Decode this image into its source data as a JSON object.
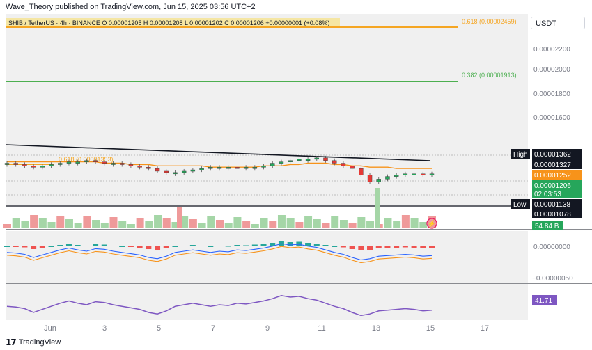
{
  "header": {
    "published_by": "Wave_Theory published on TradingView.com, Jun 15, 2025 03:56 UTC+2",
    "symbol_line": "SHIB / TetherUS · 4h · BINANCE",
    "o": "O",
    "o_val": "0.00001205",
    "h": "H",
    "h_val": "0.00001208",
    "l": "L",
    "l_val": "0.00001202",
    "c": "C",
    "c_val": "0.00001206",
    "change": "+0.00000001 (+0.08%)"
  },
  "currency": "USDT",
  "footer": {
    "brand": "TradingView",
    "logo": "tv-logo-icon"
  },
  "chart_data": {
    "type": "line",
    "price_scale": {
      "ticks": [
        "0.00002200",
        "0.00002000",
        "0.00001800",
        "0.00001600"
      ],
      "min": 1e-05,
      "max": 2.6e-05
    },
    "time_axis": [
      "Jun",
      "3",
      "5",
      "7",
      "9",
      "11",
      "13",
      "15",
      "17"
    ],
    "fib_levels": [
      {
        "label": "0.618 (0.00002459)",
        "value": 2.459e-05,
        "color": "#f5a623"
      },
      {
        "label": "0.382 (0.00001913)",
        "value": 1.913e-05,
        "color": "#4caf50"
      },
      {
        "label": "0.618 (0.00001353)",
        "value": 1.353e-05,
        "color": "#f5a623"
      }
    ],
    "price_tags": [
      {
        "label": "High",
        "value": "0.00001362",
        "bg": "#131722"
      },
      {
        "label": "",
        "value": "0.00001327",
        "bg": "#131722"
      },
      {
        "label": "",
        "value": "0.00001252",
        "bg": "#f7931a"
      },
      {
        "label": "",
        "value": "0.00001206",
        "bg": "#26a65b",
        "countdown": "02:03:53"
      },
      {
        "label": "Low",
        "value": "0.00001138",
        "bg": "#131722"
      },
      {
        "label": "",
        "value": "0.00001078",
        "bg": "#131722"
      }
    ],
    "volume_tag": "54.84 B",
    "macd_ticks": [
      "0.00000000",
      "−0.00000050"
    ],
    "rsi_tag": "41.71",
    "price_series": [
      1.29e-05,
      1.28e-05,
      1.27e-05,
      1.26e-05,
      1.27e-05,
      1.28e-05,
      1.29e-05,
      1.3e-05,
      1.3e-05,
      1.31e-05,
      1.3e-05,
      1.29e-05,
      1.29e-05,
      1.28e-05,
      1.27e-05,
      1.26e-05,
      1.25e-05,
      1.23e-05,
      1.22e-05,
      1.22e-05,
      1.23e-05,
      1.24e-05,
      1.25e-05,
      1.26e-05,
      1.26e-05,
      1.26e-05,
      1.25e-05,
      1.26e-05,
      1.26e-05,
      1.27e-05,
      1.29e-05,
      1.3e-05,
      1.31e-05,
      1.32e-05,
      1.32e-05,
      1.33e-05,
      1.31e-05,
      1.29e-05,
      1.27e-05,
      1.25e-05,
      1.2e-05,
      1.15e-05,
      1.17e-05,
      1.19e-05,
      1.2e-05,
      1.21e-05,
      1.21e-05,
      1.2e-05,
      1.21e-05
    ],
    "ema_series": [
      1.3e-05,
      1.3e-05,
      1.3e-05,
      1.3e-05,
      1.3e-05,
      1.3e-05,
      1.3e-05,
      1.3e-05,
      1.3e-05,
      1.3e-05,
      1.3e-05,
      1.29e-05,
      1.29e-05,
      1.29e-05,
      1.28e-05,
      1.28e-05,
      1.28e-05,
      1.27e-05,
      1.27e-05,
      1.27e-05,
      1.27e-05,
      1.27e-05,
      1.27e-05,
      1.26e-05,
      1.26e-05,
      1.26e-05,
      1.26e-05,
      1.26e-05,
      1.26e-05,
      1.27e-05,
      1.27e-05,
      1.27e-05,
      1.28e-05,
      1.28e-05,
      1.29e-05,
      1.29e-05,
      1.29e-05,
      1.28e-05,
      1.28e-05,
      1.27e-05,
      1.27e-05,
      1.26e-05,
      1.26e-05,
      1.26e-05,
      1.25e-05,
      1.25e-05,
      1.25e-05,
      1.25e-05,
      1.25e-05
    ],
    "rsi_series": [
      48,
      47,
      45,
      40,
      44,
      48,
      52,
      55,
      52,
      50,
      54,
      53,
      50,
      48,
      46,
      44,
      40,
      38,
      42,
      48,
      50,
      52,
      50,
      48,
      50,
      49,
      52,
      51,
      53,
      55,
      58,
      62,
      60,
      61,
      58,
      56,
      52,
      48,
      45,
      40,
      36,
      38,
      42,
      43,
      44,
      45,
      44,
      42,
      43
    ]
  }
}
